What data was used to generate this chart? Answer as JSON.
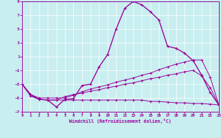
{
  "xlabel": "Windchill (Refroidissement éolien,°C)",
  "bg_color": "#c8eef0",
  "line_color": "#990099",
  "xlim": [
    0,
    23
  ],
  "ylim": [
    -7,
    9
  ],
  "xtick_vals": [
    0,
    1,
    2,
    3,
    4,
    5,
    6,
    7,
    8,
    9,
    10,
    11,
    12,
    13,
    14,
    15,
    16,
    17,
    18,
    19,
    20,
    21,
    22,
    23
  ],
  "ytick_vals": [
    -7,
    -5,
    -3,
    -1,
    1,
    3,
    5,
    7,
    9
  ],
  "series1_y": [
    -3.0,
    -4.7,
    -5.2,
    -5.3,
    -6.3,
    -5.2,
    -5.1,
    -3.2,
    -3.0,
    -0.5,
    1.3,
    5.0,
    8.0,
    9.0,
    8.5,
    7.5,
    6.3,
    2.5,
    2.2,
    1.5,
    0.4,
    -1.7,
    -4.2,
    -6.0
  ],
  "series2_y": [
    -3.0,
    -4.5,
    -5.2,
    -5.3,
    -5.3,
    -5.3,
    -5.3,
    -5.3,
    -5.3,
    -5.3,
    -5.3,
    -5.3,
    -5.3,
    -5.3,
    -5.3,
    -5.5,
    -5.5,
    -5.6,
    -5.7,
    -5.7,
    -5.8,
    -5.8,
    -5.9,
    -6.0
  ],
  "series3_y": [
    -3.0,
    -4.5,
    -5.0,
    -5.0,
    -5.0,
    -5.0,
    -4.6,
    -4.1,
    -3.7,
    -3.4,
    -3.1,
    -2.7,
    -2.4,
    -2.1,
    -1.7,
    -1.4,
    -0.9,
    -0.5,
    -0.1,
    0.2,
    0.5,
    0.5,
    -2.0,
    -6.0
  ],
  "series4_y": [
    -3.0,
    -4.5,
    -5.2,
    -5.3,
    -5.3,
    -4.8,
    -4.5,
    -4.3,
    -4.0,
    -3.8,
    -3.5,
    -3.3,
    -3.0,
    -2.8,
    -2.5,
    -2.2,
    -2.0,
    -1.7,
    -1.5,
    -1.2,
    -1.0,
    -1.8,
    -3.5,
    -6.0
  ]
}
